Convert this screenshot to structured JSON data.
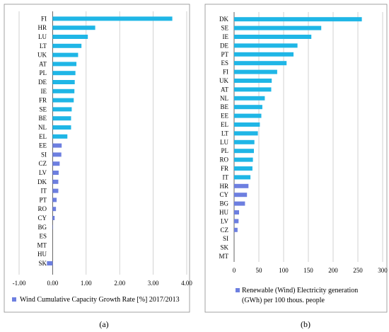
{
  "colors": {
    "bar": "#1fb6e6",
    "bar_small": "#6d7fe0",
    "grid": "#bfbfbf",
    "frame": "#8c8c8c"
  },
  "chart_data": [
    {
      "type": "bar",
      "orientation": "horizontal",
      "categories": [
        "FI",
        "HR",
        "LU",
        "LT",
        "UK",
        "AT",
        "PL",
        "DE",
        "IE",
        "FR",
        "SE",
        "BE",
        "NL",
        "EL",
        "EE",
        "SI",
        "CZ",
        "LV",
        "DK",
        "IT",
        "PT",
        "RO",
        "CY",
        "BG",
        "ES",
        "MT",
        "HU",
        "SK"
      ],
      "values": [
        3.57,
        1.27,
        1.05,
        0.86,
        0.76,
        0.71,
        0.68,
        0.66,
        0.65,
        0.63,
        0.57,
        0.55,
        0.55,
        0.44,
        0.27,
        0.26,
        0.21,
        0.18,
        0.17,
        0.17,
        0.12,
        0.1,
        0.06,
        0.01,
        0.0,
        0.0,
        0.0,
        -0.17
      ],
      "xlim": [
        -1,
        4
      ],
      "xticks": [
        "-1.00",
        "0.00",
        "1.00",
        "2.00",
        "3.00",
        "4.00"
      ],
      "tick_values": [
        -1,
        0,
        1,
        2,
        3,
        4
      ],
      "legend": "Wind Cumulative Capacity Growth Rate [%] 2017/2013",
      "legend_position": "bottom",
      "grid": true,
      "caption": "(a)"
    },
    {
      "type": "bar",
      "orientation": "horizontal",
      "categories": [
        "DK",
        "SE",
        "IE",
        "DE",
        "PT",
        "ES",
        "FI",
        "UK",
        "AT",
        "NL",
        "BE",
        "EE",
        "EL",
        "LT",
        "LU",
        "PL",
        "RO",
        "FR",
        "IT",
        "HR",
        "CY",
        "BG",
        "HU",
        "LV",
        "CZ",
        "SI",
        "SK",
        "MT"
      ],
      "values": [
        258,
        176,
        156,
        128,
        120,
        106,
        87,
        76,
        75,
        62,
        57,
        55,
        52,
        48,
        41,
        40,
        38,
        37,
        33,
        29,
        26,
        22,
        10,
        9,
        7,
        0,
        0,
        0
      ],
      "xlim": [
        0,
        300
      ],
      "xticks": [
        "0",
        "50",
        "100",
        "150",
        "200",
        "250",
        "300"
      ],
      "tick_values": [
        0,
        50,
        100,
        150,
        200,
        250,
        300
      ],
      "legend": [
        "Renewable (Wind) Electricity generation",
        "(GWh) per 100 thous. people"
      ],
      "legend_position": "bottom",
      "grid": true,
      "caption": "(b)"
    }
  ]
}
